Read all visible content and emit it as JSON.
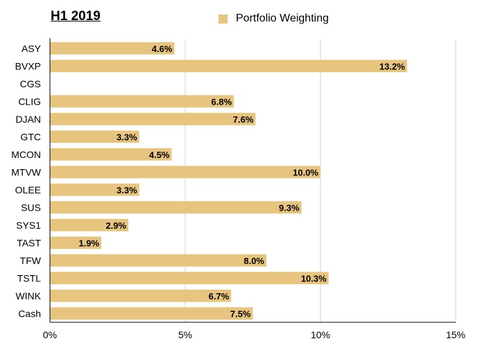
{
  "chart_data": {
    "type": "bar",
    "orientation": "horizontal",
    "title": "H1 2019",
    "series": [
      {
        "name": "Portfolio Weighting",
        "values": [
          4.6,
          13.2,
          null,
          6.8,
          7.6,
          3.3,
          4.5,
          10.0,
          3.3,
          9.3,
          2.9,
          1.9,
          8.0,
          10.3,
          6.7,
          7.5
        ],
        "value_labels": [
          "4.6%",
          "13.2%",
          "",
          "6.8%",
          "7.6%",
          "3.3%",
          "4.5%",
          "10.0%",
          "3.3%",
          "9.3%",
          "2.9%",
          "1.9%",
          "8.0%",
          "10.3%",
          "6.7%",
          "7.5%"
        ]
      }
    ],
    "categories": [
      "ASY",
      "BVXP",
      "CGS",
      "CLIG",
      "DJAN",
      "GTC",
      "MCON",
      "MTVW",
      "OLEE",
      "SUS",
      "SYS1",
      "TAST",
      "TFW",
      "TSTL",
      "WINK",
      "Cash"
    ],
    "xlim": [
      0,
      15
    ],
    "xticks": [
      0,
      5,
      10,
      15
    ],
    "xtick_labels": [
      "0%",
      "5%",
      "10%",
      "15%"
    ],
    "xlabel": "",
    "ylabel": "",
    "grid": "vertical",
    "legend_position": "top",
    "colors": {
      "bar": "#E8C57E",
      "grid": "#D0D0D0",
      "axis": "#000000"
    }
  }
}
